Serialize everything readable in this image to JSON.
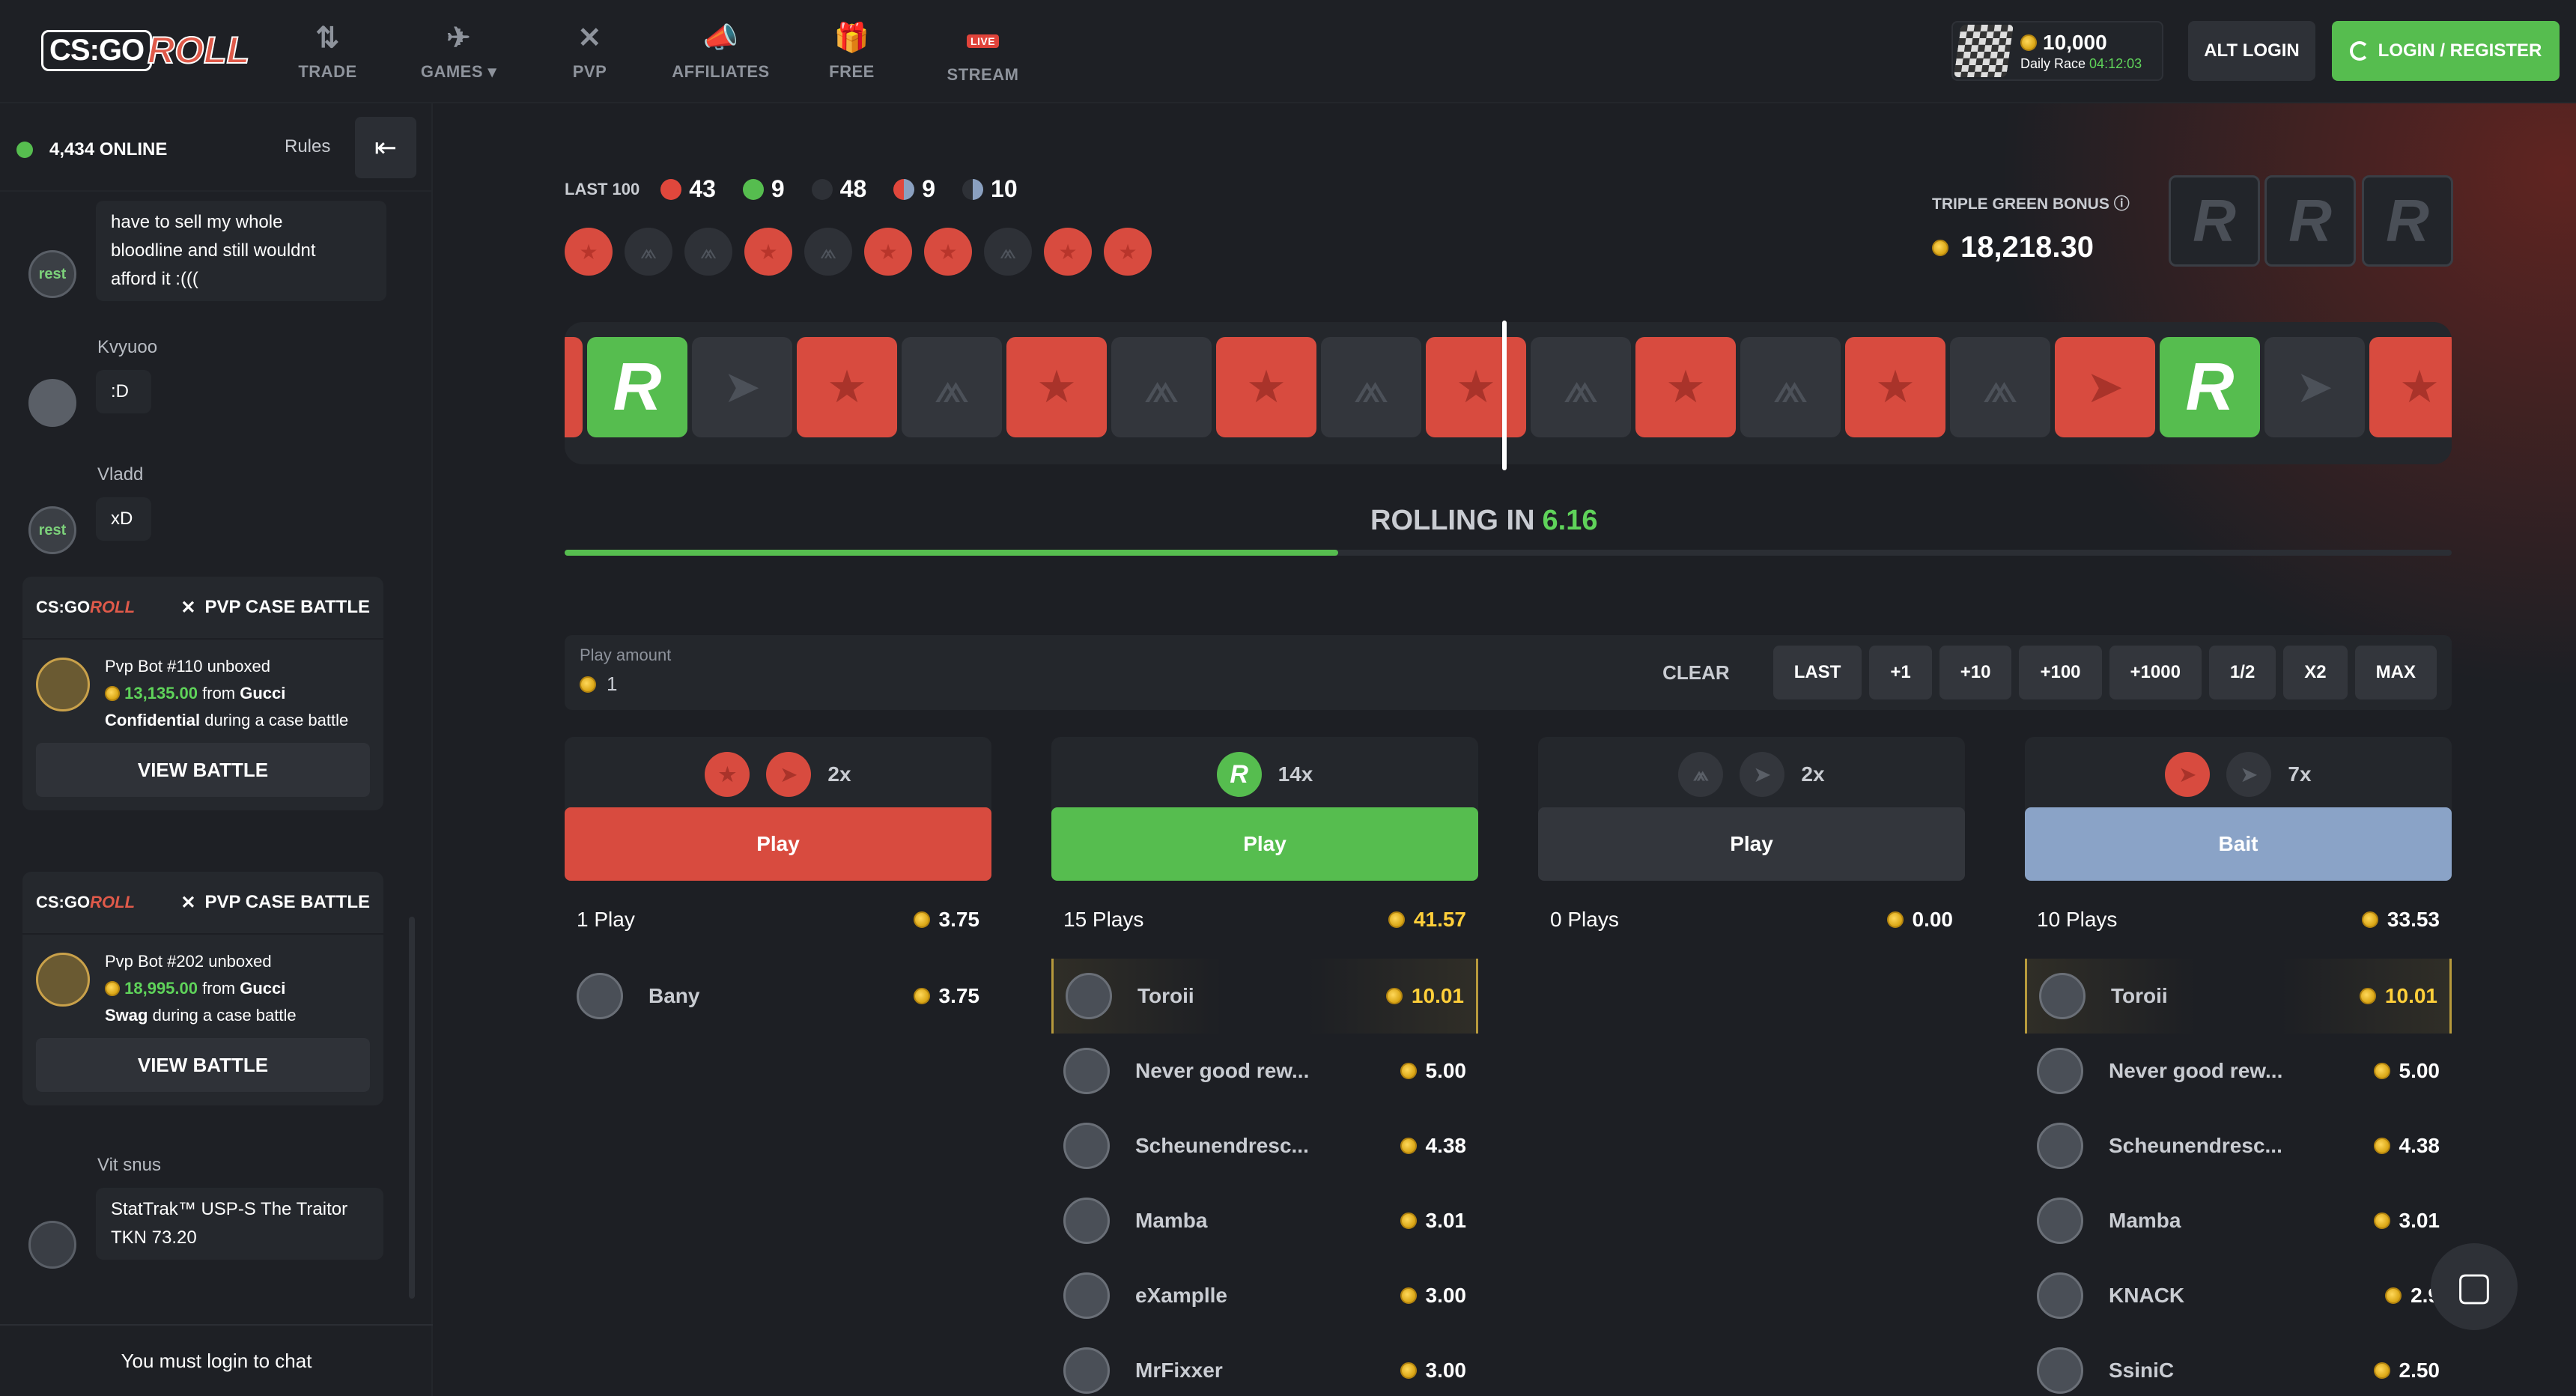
{
  "brand": {
    "logo_cs": "CS:GO",
    "logo_roll": "ROLL"
  },
  "nav": [
    {
      "label": "TRADE",
      "icon": "⇅",
      "icon_name": "trade-icon"
    },
    {
      "label": "GAMES ▾",
      "icon": "✈",
      "icon_name": "rocket-icon"
    },
    {
      "label": "PVP",
      "icon": "✕",
      "icon_name": "swords-icon"
    },
    {
      "label": "AFFILIATES",
      "icon": "📣",
      "icon_name": "megaphone-icon"
    },
    {
      "label": "FREE",
      "icon": "🎁",
      "icon_name": "gift-icon"
    },
    {
      "label": "STREAM",
      "icon": "LIVE",
      "icon_name": "live-icon"
    }
  ],
  "race": {
    "amount": "10,000",
    "label": "Daily Race",
    "timer": "04:12:03"
  },
  "header_buttons": {
    "alt_login": "ALT LOGIN",
    "login": "LOGIN / REGISTER"
  },
  "sidebar": {
    "online": "4,434 ONLINE",
    "rules": "Rules",
    "collapse_icon": "⇤",
    "messages": [
      {
        "text_lines": [
          "have to sell my whole",
          "bloodline and still wouldnt",
          "afford it :((("
        ],
        "avatar": "rest"
      },
      {
        "user": "Kvyuoo",
        "text": ":D",
        "avatar": ""
      },
      {
        "user": "Vladd",
        "text": "xD",
        "avatar": "rest"
      },
      {
        "user": "Vit snus",
        "text_lines": [
          "StatTrak™ USP-S The Traitor",
          "TKN 73.20"
        ],
        "avatar": ""
      }
    ],
    "battles": [
      {
        "title": "PVP CASE BATTLE",
        "bot": "Pvp Bot #110 unboxed",
        "amount": "13,135.00",
        "from": "from",
        "case": "Gucci",
        "case2": "Confidential",
        "tail": "during a case battle",
        "button": "VIEW BATTLE"
      },
      {
        "title": "PVP CASE BATTLE",
        "bot": "Pvp Bot #202 unboxed",
        "amount": "18,995.00",
        "from": "from",
        "case": "Gucci",
        "case2": "Swag",
        "tail": "during a case battle",
        "button": "VIEW BATTLE"
      }
    ],
    "login_prompt": "You must login to chat"
  },
  "roulette": {
    "last100_label": "LAST 100",
    "stats": {
      "red": "43",
      "green": "9",
      "black": "48",
      "red_bait": "9",
      "black_bait": "10"
    },
    "history": [
      "red",
      "dark",
      "dark",
      "red",
      "dark",
      "red",
      "red",
      "dark",
      "red",
      "red"
    ],
    "triple_green_label": "TRIPLE GREEN BONUS ⓘ",
    "triple_green_amount": "18,218.30",
    "reel": [
      "red",
      "green",
      "dark-fish",
      "red",
      "dark",
      "red",
      "dark",
      "red",
      "dark",
      "red",
      "dark",
      "red",
      "dark",
      "red",
      "dark",
      "red-fish",
      "green",
      "dark-fish",
      "red"
    ],
    "rolling_label": "ROLLING IN",
    "rolling_time": "6.16",
    "progress": 0.41
  },
  "play_amount": {
    "label": "Play amount",
    "value": "1",
    "buttons": [
      "LAST",
      "+1",
      "+10",
      "+100",
      "+1000",
      "1/2",
      "X2",
      "MAX"
    ],
    "clear": "CLEAR"
  },
  "colors": {
    "red": "#d84b3f",
    "green": "#56bd4f",
    "dark": "#33363c",
    "bait": "#8aa3c7",
    "accent_green": "#5fd35a",
    "gold": "#ffcf3a"
  },
  "columns": [
    {
      "multiplier": "2x",
      "button": "Play",
      "plays": "1 Play",
      "total": "3.75",
      "rows": [
        {
          "name": "Bany",
          "amount": "3.75",
          "hl": false
        }
      ]
    },
    {
      "multiplier": "14x",
      "button": "Play",
      "plays": "15 Plays",
      "total": "41.57",
      "rows": [
        {
          "name": "Toroii",
          "amount": "10.01",
          "hl": true
        },
        {
          "name": "Never good rew...",
          "amount": "5.00",
          "hl": false
        },
        {
          "name": "Scheunendresc...",
          "amount": "4.38",
          "hl": false
        },
        {
          "name": "Mamba",
          "amount": "3.01",
          "hl": false
        },
        {
          "name": "eXamplle",
          "amount": "3.00",
          "hl": false
        },
        {
          "name": "MrFixxer",
          "amount": "3.00",
          "hl": false
        }
      ]
    },
    {
      "multiplier": "2x",
      "button": "Play",
      "plays": "0 Plays",
      "total": "0.00",
      "rows": []
    },
    {
      "multiplier": "7x",
      "button": "Bait",
      "plays": "10 Plays",
      "total": "33.53",
      "rows": [
        {
          "name": "Toroii",
          "amount": "10.01",
          "hl": true
        },
        {
          "name": "Never good rew...",
          "amount": "5.00",
          "hl": false
        },
        {
          "name": "Scheunendresc...",
          "amount": "4.38",
          "hl": false
        },
        {
          "name": "Mamba",
          "amount": "3.01",
          "hl": false
        },
        {
          "name": "KNACK",
          "amount": "2.9",
          "hl": false
        },
        {
          "name": "SsiniC",
          "amount": "2.50",
          "hl": false
        }
      ]
    }
  ]
}
